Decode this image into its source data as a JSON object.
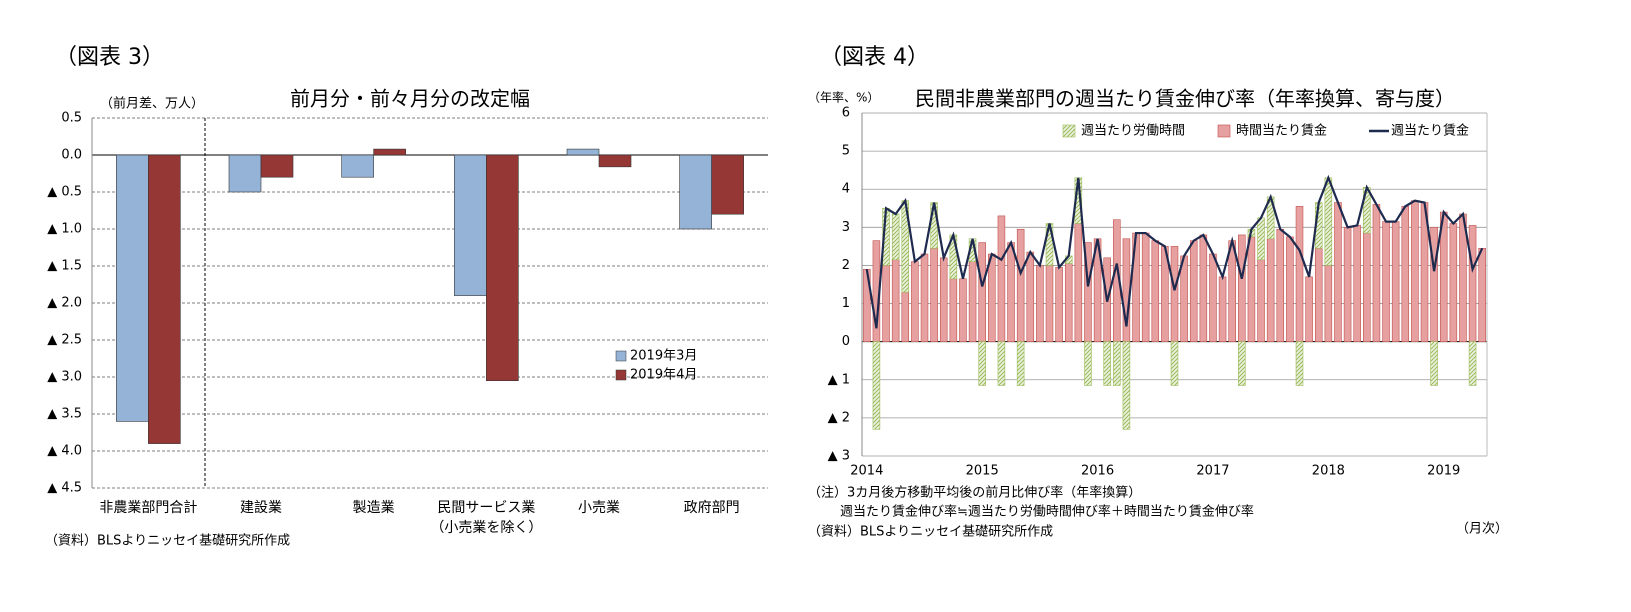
{
  "chart_data": [
    {
      "type": "bar",
      "figure_label": "（図表 3）",
      "title": "前月分・前々月分の改定幅",
      "y_label": "（前月差、万人）",
      "source": "（資料）BLSよりニッセイ基礎研究所作成",
      "categories": [
        "非農業部門合計",
        "建設業",
        "製造業",
        "民間サービス業\n（小売業を除く）",
        "小売業",
        "政府部門"
      ],
      "series": [
        {
          "name": "2019年3月",
          "color": "#95b3d7",
          "values": [
            -3.6,
            -0.5,
            -0.3,
            -1.9,
            0.08,
            -1.0
          ]
        },
        {
          "name": "2019年4月",
          "color": "#953735",
          "values": [
            -3.9,
            -0.3,
            0.08,
            -3.05,
            -0.16,
            -0.8
          ]
        }
      ],
      "ylim": [
        -4.5,
        0.5
      ],
      "yticks": [
        0.5,
        {
          "value": 0,
          "label": "0.0"
        },
        {
          "value": -0.5,
          "label": "▲ 0.5"
        },
        {
          "value": -1,
          "label": "▲ 1.0"
        },
        {
          "value": -1.5,
          "label": "▲ 1.5"
        },
        {
          "value": -2,
          "label": "▲ 2.0"
        },
        {
          "value": -2.5,
          "label": "▲ 2.5"
        },
        {
          "value": -3,
          "label": "▲ 3.0"
        },
        {
          "value": -3.5,
          "label": "▲ 3.5"
        },
        {
          "value": -4,
          "label": "▲ 4.0"
        },
        {
          "value": -4.5,
          "label": "▲ 4.5"
        }
      ],
      "grid": true,
      "grid_style": "dashed",
      "legend": "lower right"
    },
    {
      "type": "bar_line",
      "figure_label": "（図表 4）",
      "title": "民間非農業部門の週当たり賃金伸び率（年率換算、寄与度）",
      "y_label": "（年率、%）",
      "notes": [
        "（注）3カ月後方移動平均後の前月比伸び率（年率換算）",
        "週当たり賃金伸び率≒週当たり労働時間伸び率＋時間当たり賃金伸び率",
        "（資料）BLSよりニッセイ基礎研究所作成"
      ],
      "x_label": "（月次）",
      "categories": [
        "2014",
        null,
        null,
        null,
        null,
        null,
        null,
        null,
        null,
        null,
        null,
        null,
        "2015",
        null,
        null,
        null,
        null,
        null,
        null,
        null,
        null,
        null,
        null,
        null,
        "2016",
        null,
        null,
        null,
        null,
        null,
        null,
        null,
        null,
        null,
        null,
        null,
        "2017",
        null,
        null,
        null,
        null,
        null,
        null,
        null,
        null,
        null,
        null,
        null,
        "2018",
        null,
        null,
        null,
        null,
        null,
        null,
        null,
        null,
        null,
        null,
        null,
        "2019",
        null,
        null,
        null,
        null
      ],
      "series": [
        {
          "name": "週当たり労働時間",
          "kind": "bar",
          "color": "#9bbb59",
          "hatch": true,
          "values": [
            0,
            -2.3,
            1.5,
            1.2,
            2.4,
            0,
            0,
            1.2,
            0,
            1.15,
            0,
            0.6,
            -1.15,
            0,
            -1.15,
            0,
            -1.15,
            0,
            0,
            1.1,
            0,
            0.2,
            1.2,
            -1.15,
            0,
            -1.15,
            -1.15,
            -2.3,
            0,
            0,
            0,
            0,
            -1.15,
            0,
            0,
            0,
            0,
            0,
            0,
            -1.15,
            0.2,
            1.1,
            1.1,
            0,
            0,
            -1.15,
            0,
            1.2,
            2.3,
            0,
            0,
            0,
            1.2,
            0,
            0,
            0,
            0,
            0,
            0,
            -1.15,
            0,
            0,
            0,
            -1.15,
            0
          ]
        },
        {
          "name": "時間当たり賃金",
          "kind": "bar",
          "color": "#e6a0a0",
          "values": [
            1.9,
            2.65,
            2.0,
            2.15,
            1.3,
            2.1,
            2.3,
            2.45,
            2.2,
            1.65,
            1.65,
            2.1,
            2.6,
            2.3,
            3.3,
            2.6,
            2.95,
            2.35,
            2.0,
            2.0,
            1.95,
            2.05,
            3.1,
            2.6,
            2.7,
            2.2,
            3.2,
            2.7,
            2.85,
            2.85,
            2.65,
            2.5,
            2.5,
            2.25,
            2.65,
            2.8,
            2.3,
            1.7,
            2.65,
            2.8,
            2.75,
            2.15,
            2.7,
            2.95,
            2.75,
            3.55,
            1.7,
            2.45,
            2.0,
            3.65,
            3.0,
            3.05,
            2.85,
            3.6,
            3.15,
            3.15,
            3.55,
            3.7,
            3.65,
            3.0,
            3.4,
            3.1,
            3.35,
            3.05,
            2.45
          ]
        },
        {
          "name": "週当たり賃金",
          "kind": "line",
          "color": "#1f2a4f",
          "values": [
            1.9,
            0.35,
            3.5,
            3.35,
            3.7,
            2.1,
            2.3,
            3.65,
            2.2,
            2.8,
            1.65,
            2.7,
            1.45,
            2.3,
            2.15,
            2.6,
            1.8,
            2.35,
            2.0,
            3.1,
            1.95,
            2.25,
            4.3,
            1.45,
            2.7,
            1.05,
            2.05,
            0.4,
            2.85,
            2.85,
            2.65,
            2.5,
            1.35,
            2.25,
            2.65,
            2.8,
            2.3,
            1.7,
            2.65,
            1.65,
            2.95,
            3.25,
            3.8,
            2.95,
            2.75,
            2.4,
            1.7,
            3.65,
            4.3,
            3.65,
            3.0,
            3.05,
            4.05,
            3.6,
            3.15,
            3.15,
            3.55,
            3.7,
            3.65,
            1.85,
            3.4,
            3.1,
            3.35,
            1.9,
            2.45
          ]
        }
      ],
      "ylim": [
        -3,
        6
      ],
      "yticks": [
        {
          "value": -3,
          "label": "▲ 3"
        },
        {
          "value": -2,
          "label": "▲ 2"
        },
        {
          "value": -1,
          "label": "▲ 1"
        },
        0,
        1,
        2,
        3,
        4,
        5,
        6
      ],
      "grid": true,
      "grid_style": "solid",
      "legend": "upper center"
    }
  ]
}
